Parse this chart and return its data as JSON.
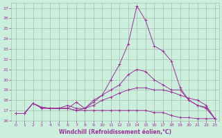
{
  "xlabel": "Windchill (Refroidissement éolien,°C)",
  "bg_color": "#cceedd",
  "grid_color": "#aabbaa",
  "line_color": "#993399",
  "xlim": [
    -0.5,
    23.5
  ],
  "ylim": [
    16,
    27.5
  ],
  "yticks": [
    16,
    17,
    18,
    19,
    20,
    21,
    22,
    23,
    24,
    25,
    26,
    27
  ],
  "xticks": [
    0,
    1,
    2,
    3,
    4,
    5,
    6,
    7,
    8,
    9,
    10,
    11,
    12,
    13,
    14,
    15,
    16,
    17,
    18,
    19,
    20,
    21,
    22,
    23
  ],
  "series": [
    {
      "x": [
        0,
        1,
        2,
        3,
        4,
        5,
        6,
        7,
        8,
        9,
        10,
        11,
        12,
        13,
        14,
        15,
        16,
        17,
        18,
        19,
        20,
        21,
        22,
        23
      ],
      "y": [
        16.7,
        16.7,
        17.7,
        17.3,
        17.2,
        17.2,
        17.5,
        17.2,
        17.2,
        17.8,
        18.5,
        20.0,
        21.5,
        23.5,
        27.2,
        25.8,
        23.3,
        22.8,
        21.8,
        19.2,
        18.0,
        17.5,
        17.2,
        16.2
      ]
    },
    {
      "x": [
        0,
        1,
        2,
        3,
        4,
        5,
        6,
        7,
        8,
        9,
        10,
        11,
        12,
        13,
        14,
        15,
        16,
        17,
        18,
        19,
        20,
        21,
        22,
        23
      ],
      "y": [
        16.7,
        16.7,
        17.7,
        17.2,
        17.2,
        17.2,
        17.2,
        17.8,
        17.2,
        18.0,
        18.5,
        19.0,
        19.5,
        20.5,
        21.0,
        20.8,
        20.0,
        19.5,
        19.0,
        19.0,
        18.0,
        17.5,
        17.3,
        16.2
      ]
    },
    {
      "x": [
        0,
        1,
        2,
        3,
        4,
        5,
        6,
        7,
        8,
        9,
        10,
        11,
        12,
        13,
        14,
        15,
        16,
        17,
        18,
        19,
        20,
        21,
        22,
        23
      ],
      "y": [
        16.7,
        16.7,
        17.7,
        17.3,
        17.2,
        17.2,
        17.2,
        17.0,
        17.2,
        17.5,
        18.0,
        18.3,
        18.7,
        19.0,
        19.2,
        19.2,
        19.0,
        19.0,
        18.8,
        18.5,
        18.2,
        18.0,
        17.5,
        16.2
      ]
    },
    {
      "x": [
        0,
        1,
        2,
        3,
        4,
        5,
        6,
        7,
        8,
        9,
        10,
        11,
        12,
        13,
        14,
        15,
        16,
        17,
        18,
        19,
        20,
        21,
        22,
        23
      ],
      "y": [
        16.7,
        16.7,
        17.7,
        17.3,
        17.2,
        17.2,
        17.2,
        17.0,
        17.0,
        17.0,
        17.0,
        17.0,
        17.0,
        17.0,
        17.0,
        17.0,
        16.8,
        16.8,
        16.5,
        16.3,
        16.3,
        16.2,
        16.2,
        16.2
      ]
    }
  ]
}
